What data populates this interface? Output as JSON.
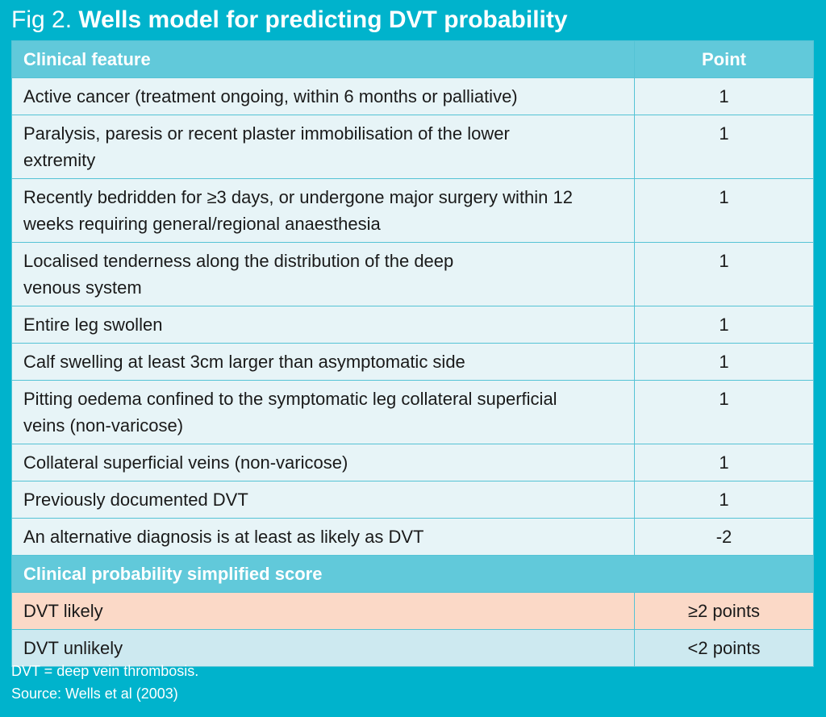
{
  "title": {
    "prefix": "Fig 2.",
    "text": "Wells model for predicting DVT probability"
  },
  "table": {
    "header": {
      "feature": "Clinical feature",
      "point": "Point"
    },
    "rows": [
      {
        "feature": "Active cancer (treatment ongoing, within 6 months or palliative)",
        "point": "1"
      },
      {
        "feature": "Paralysis, paresis or recent plaster immobilisation of the lower extremity",
        "point": "1"
      },
      {
        "feature": "Recently bedridden for ≥3 days, or undergone major surgery within 12 weeks requiring general/regional anaesthesia",
        "point": "1"
      },
      {
        "feature": "Localised tenderness along the distribution of the deep venous system",
        "point": "1"
      },
      {
        "feature": "Entire leg swollen",
        "point": "1"
      },
      {
        "feature": "Calf swelling at least 3cm larger than asymptomatic side",
        "point": "1"
      },
      {
        "feature": "Pitting oedema confined to the symptomatic leg collateral superficial veins (non-varicose)",
        "point": "1"
      },
      {
        "feature": "Collateral superficial veins (non-varicose)",
        "point": "1"
      },
      {
        "feature": "Previously documented DVT",
        "point": "1"
      },
      {
        "feature": "An alternative diagnosis is at least as likely as DVT",
        "point": "-2"
      }
    ],
    "section": "Clinical probability simplified score",
    "likely": {
      "label": "DVT likely",
      "value": "≥2 points"
    },
    "unlikely": {
      "label": "DVT unlikely",
      "value": "<2 points"
    }
  },
  "footnote": {
    "abbr": "DVT = deep vein thrombosis.",
    "source": "Source: Wells et al (2003)"
  },
  "colors": {
    "background": "#00b3cc",
    "header": "#61c9da",
    "row": "#e7f4f7",
    "likely": "#fbd9c7",
    "unlikely": "#cde9f0"
  }
}
